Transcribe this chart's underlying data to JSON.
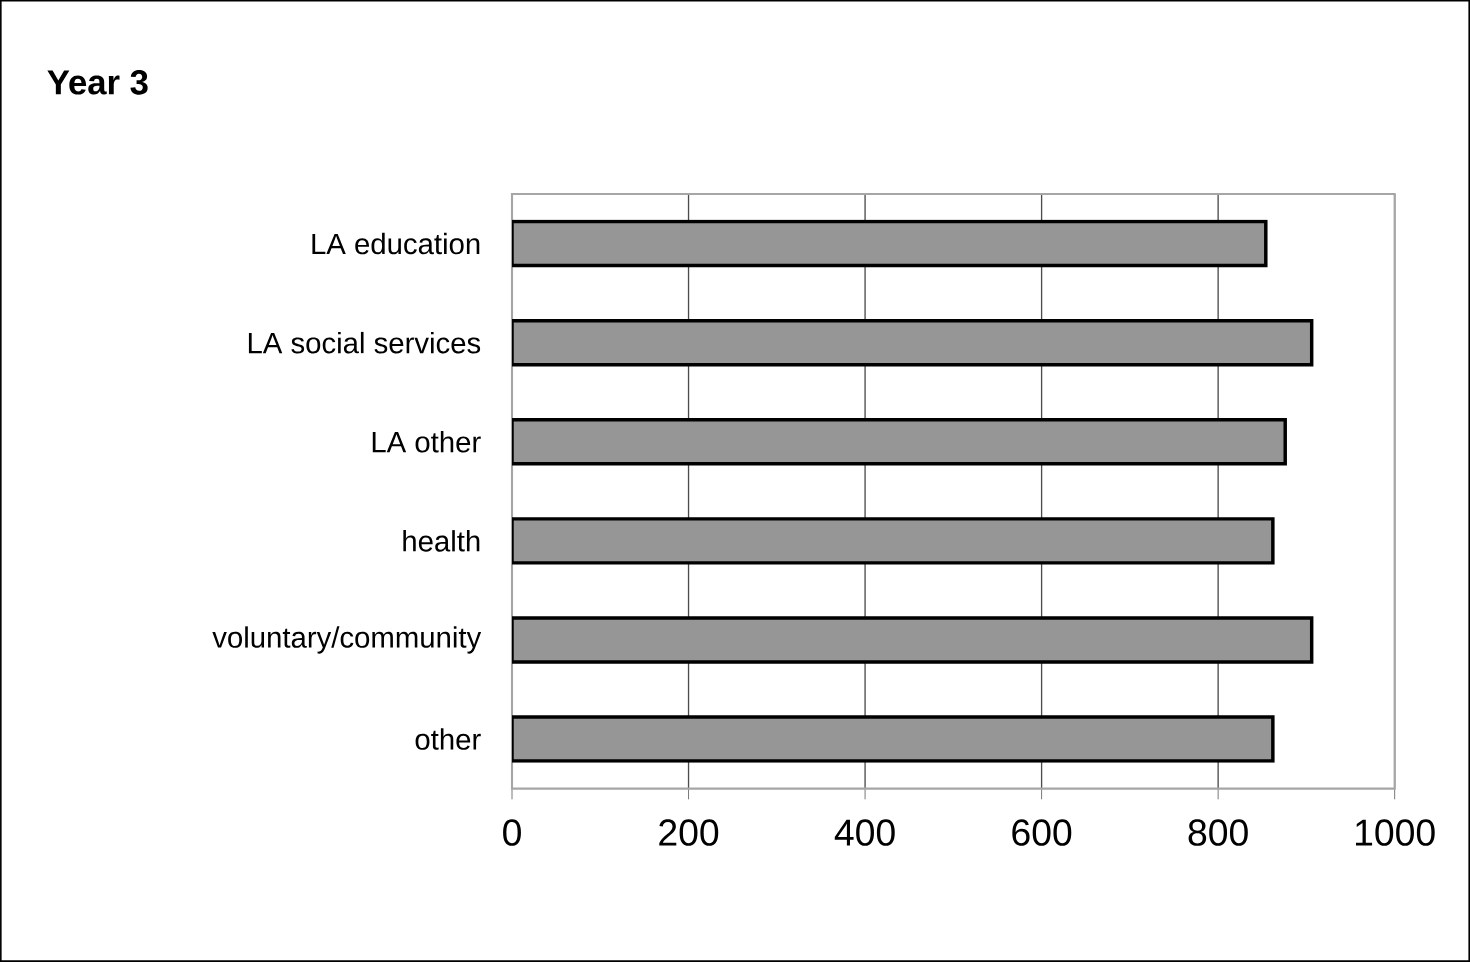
{
  "chart_data": {
    "type": "bar",
    "orientation": "horizontal",
    "title": "Year 3",
    "categories": [
      "LA education",
      "LA social services",
      "LA other",
      "health",
      "voluntary/community",
      "other"
    ],
    "values": [
      854,
      906,
      876,
      862,
      906,
      862
    ],
    "color": "#969696",
    "xlim": [
      0,
      1000
    ],
    "xticks": [
      0,
      200,
      400,
      600,
      800,
      1000
    ],
    "grid": "x"
  }
}
